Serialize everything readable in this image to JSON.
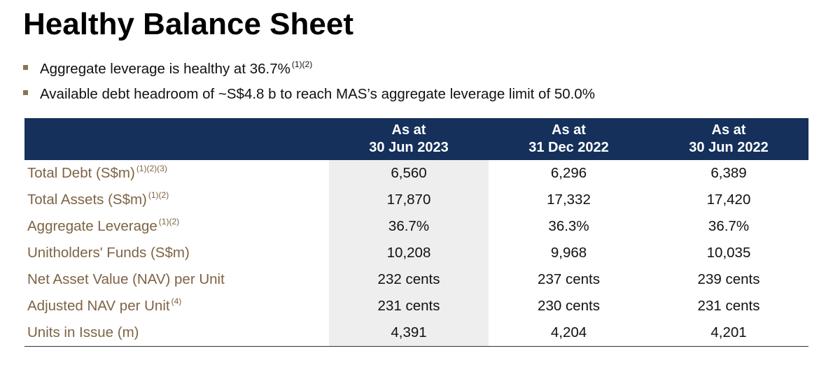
{
  "title": "Healthy Balance Sheet",
  "bullets": [
    {
      "text": "Aggregate leverage is healthy at 36.7%",
      "note": "(1)(2)"
    },
    {
      "text": "Available debt headroom of ~S$4.8 b to reach MAS’s aggregate leverage limit of 50.0%",
      "note": ""
    }
  ],
  "colors": {
    "header_bg": "#14305b",
    "label_text": "#7d6444",
    "bullet_marker": "#8b7352",
    "shaded_column": "#eeeeee"
  },
  "table": {
    "columns": [
      {
        "line1": "As at",
        "line2": "30 Jun 2023"
      },
      {
        "line1": "As at",
        "line2": "31 Dec 2022"
      },
      {
        "line1": "As at",
        "line2": "30 Jun 2022"
      }
    ],
    "rows": [
      {
        "label": "Total Debt (S$m)",
        "note": "(1)(2)(3)",
        "values": [
          "6,560",
          "6,296",
          "6,389"
        ]
      },
      {
        "label": "Total Assets (S$m)",
        "note": "(1)(2)",
        "values": [
          "17,870",
          "17,332",
          "17,420"
        ]
      },
      {
        "label": "Aggregate Leverage",
        "note": "(1)(2)",
        "values": [
          "36.7%",
          "36.3%",
          "36.7%"
        ]
      },
      {
        "label": "Unitholders' Funds (S$m)",
        "note": "",
        "values": [
          "10,208",
          "9,968",
          "10,035"
        ]
      },
      {
        "label": "Net Asset Value (NAV) per Unit",
        "note": "",
        "values": [
          "232 cents",
          "237 cents",
          "239 cents"
        ]
      },
      {
        "label": "Adjusted NAV per Unit",
        "note": "(4)",
        "values": [
          "231 cents",
          "230 cents",
          "231 cents"
        ]
      },
      {
        "label": "Units in Issue (m)",
        "note": "",
        "values": [
          "4,391",
          "4,204",
          "4,201"
        ]
      }
    ]
  }
}
